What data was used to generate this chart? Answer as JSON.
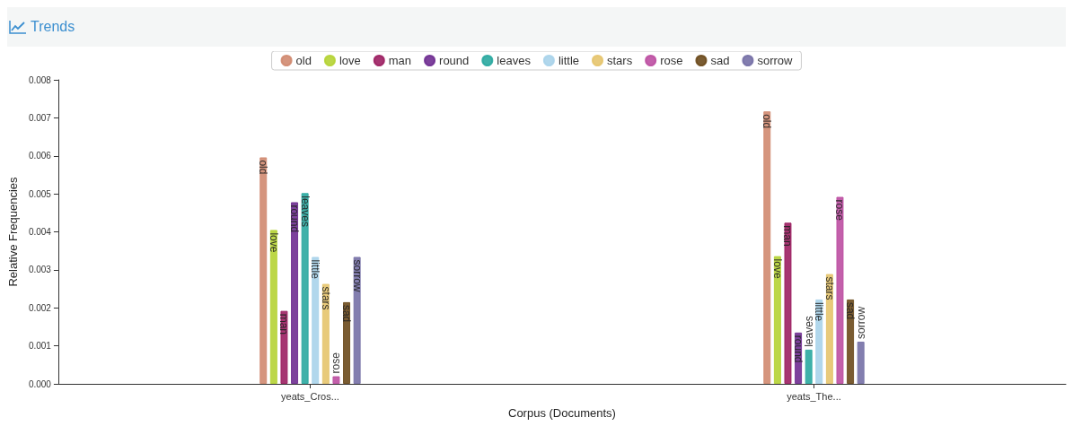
{
  "chart_data": {
    "type": "bar",
    "title": "Trends",
    "xlabel": "Corpus (Documents)",
    "ylabel": "Relative Frequencies",
    "categories": [
      "yeats_Cros...",
      "yeats_The..."
    ],
    "series": [
      {
        "name": "old",
        "color": "#d08a70",
        "values": [
          0.00596,
          0.00717
        ]
      },
      {
        "name": "love",
        "color": "#b5d334",
        "values": [
          0.00405,
          0.00336
        ]
      },
      {
        "name": "man",
        "color": "#9c1f62",
        "values": [
          0.00192,
          0.00424
        ]
      },
      {
        "name": "round",
        "color": "#6f2e91",
        "values": [
          0.00478,
          0.00135
        ]
      },
      {
        "name": "leaves",
        "color": "#2aa8a0",
        "values": [
          0.00502,
          0.0009
        ]
      },
      {
        "name": "little",
        "color": "#a9d3ea",
        "values": [
          0.00334,
          0.00222
        ]
      },
      {
        "name": "stars",
        "color": "#e5c46d",
        "values": [
          0.00263,
          0.00289
        ]
      },
      {
        "name": "rose",
        "color": "#bd4fa2",
        "values": [
          0.0002,
          0.00492
        ]
      },
      {
        "name": "sad",
        "color": "#6b4a1c",
        "values": [
          0.00215,
          0.00222
        ]
      },
      {
        "name": "sorrow",
        "color": "#7670a6",
        "values": [
          0.00334,
          0.00111
        ]
      }
    ],
    "ylim": [
      0,
      0.008
    ],
    "yticks": [
      {
        "value": 0,
        "label": "0.000"
      },
      {
        "value": 0.001,
        "label": "0.001"
      },
      {
        "value": 0.002,
        "label": "0.002"
      },
      {
        "value": 0.003,
        "label": "0.003"
      },
      {
        "value": 0.004,
        "label": "0.004"
      },
      {
        "value": 0.005,
        "label": "0.005"
      },
      {
        "value": 0.006,
        "label": "0.006"
      },
      {
        "value": 0.007,
        "label": "0.007"
      },
      {
        "value": 0.008,
        "label": "0.008"
      }
    ],
    "legend": "top",
    "grid": false
  }
}
